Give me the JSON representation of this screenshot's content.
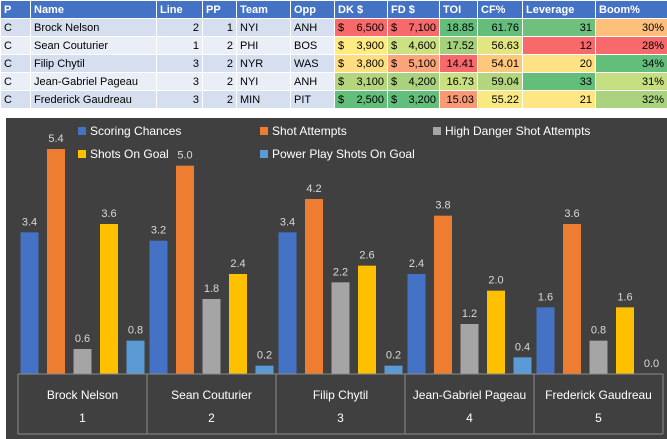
{
  "table": {
    "headers": [
      "P",
      "Name",
      "Line",
      "PP",
      "Team",
      "Opp",
      "DK $",
      "FD $",
      "TOI",
      "CF%",
      "Leverage",
      "Boom%"
    ],
    "rows": [
      {
        "pos": "C",
        "name": "Brock Nelson",
        "line": "2",
        "pp": "1",
        "team": "NYI",
        "opp": "ANH",
        "dk": "6,500",
        "fd": "7,100",
        "toi": "18.85",
        "cf": "61.76",
        "leverage": "31",
        "boom": "30%"
      },
      {
        "pos": "C",
        "name": "Sean Couturier",
        "line": "1",
        "pp": "2",
        "team": "PHI",
        "opp": "BOS",
        "dk": "3,900",
        "fd": "4,600",
        "toi": "17.52",
        "cf": "56.63",
        "leverage": "12",
        "boom": "28%"
      },
      {
        "pos": "C",
        "name": "Filip Chytil",
        "line": "3",
        "pp": "2",
        "team": "NYR",
        "opp": "WAS",
        "dk": "3,800",
        "fd": "5,100",
        "toi": "14.41",
        "cf": "54.01",
        "leverage": "20",
        "boom": "34%"
      },
      {
        "pos": "C",
        "name": "Jean-Gabriel Pageau",
        "line": "3",
        "pp": "2",
        "team": "NYI",
        "opp": "ANH",
        "dk": "3,100",
        "fd": "4,200",
        "toi": "16.73",
        "cf": "59.04",
        "leverage": "33",
        "boom": "31%"
      },
      {
        "pos": "C",
        "name": "Frederick Gaudreau",
        "line": "3",
        "pp": "2",
        "team": "MIN",
        "opp": "PIT",
        "dk": "2,500",
        "fd": "3,200",
        "toi": "15.03",
        "cf": "55.22",
        "leverage": "21",
        "boom": "32%"
      }
    ],
    "currency_symbol": "$",
    "colors": {
      "header_bg": "#4472c4",
      "dk": [
        "#f8696b",
        "#ffeb84",
        "#fede81",
        "#b5d67f",
        "#63be7b"
      ],
      "fd": [
        "#f8696b",
        "#cde082",
        "#fca57a",
        "#a9d27f",
        "#63be7b"
      ],
      "toi": [
        "#63be7b",
        "#a5d17e",
        "#f8696b",
        "#c9df81",
        "#f99a77"
      ],
      "cf": [
        "#63be7b",
        "#e3e482",
        "#ffc77c",
        "#b3d580",
        "#f9e983"
      ],
      "leverage": [
        "#6ec17c",
        "#f8696b",
        "#ffe283",
        "#63be7b",
        "#fee783"
      ],
      "boom": [
        "#fdc07c",
        "#f8696b",
        "#63be7b",
        "#c5de81",
        "#abd37f"
      ]
    }
  },
  "chart_data": {
    "type": "bar",
    "categories": [
      "Brock Nelson",
      "Sean Couturier",
      "Filip Chytil",
      "Jean-Gabriel Pageau",
      "Frederick Gaudreau"
    ],
    "category_index": [
      "1",
      "2",
      "3",
      "4",
      "5"
    ],
    "series": [
      {
        "name": "Scoring Chances",
        "color": "#4472c4",
        "values": [
          3.4,
          3.2,
          3.4,
          2.4,
          1.6
        ]
      },
      {
        "name": "Shot Attempts",
        "color": "#ed7d31",
        "values": [
          5.4,
          5.0,
          4.2,
          3.8,
          3.6
        ]
      },
      {
        "name": "High Danger Shot Attempts",
        "color": "#a5a5a5",
        "values": [
          0.6,
          1.8,
          2.2,
          1.2,
          0.8
        ]
      },
      {
        "name": "Shots On Goal",
        "color": "#ffc000",
        "values": [
          3.6,
          2.4,
          2.6,
          2.0,
          1.6
        ]
      },
      {
        "name": "Power Play Shots On Goal",
        "color": "#5b9bd5",
        "values": [
          0.8,
          0.2,
          0.2,
          0.4,
          0.0
        ]
      }
    ],
    "value_labels": [
      [
        "3.4",
        "3.2",
        "3.4",
        "2.4",
        "1.6"
      ],
      [
        "5.4",
        "5.0",
        "4.2",
        "3.8",
        "3.6"
      ],
      [
        "0.6",
        "1.8",
        "2.2",
        "1.2",
        "0.8"
      ],
      [
        "3.6",
        "2.4",
        "2.6",
        "2.0",
        "1.6"
      ],
      [
        "0.8",
        "0.2",
        "0.2",
        "0.4",
        "0.0"
      ]
    ],
    "ylim": [
      0,
      6
    ],
    "legend_position": "top",
    "grid": false,
    "title": "",
    "xlabel": "",
    "ylabel": ""
  }
}
